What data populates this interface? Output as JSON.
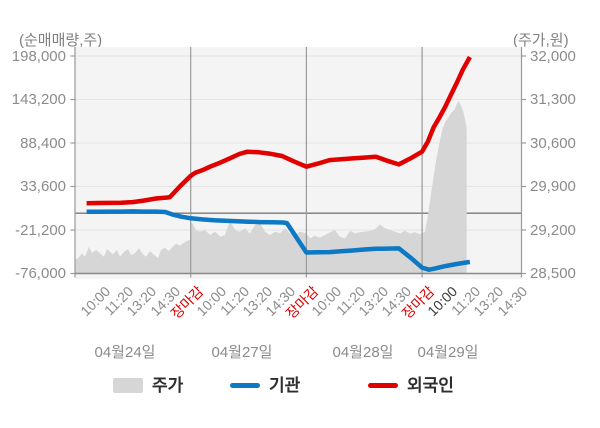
{
  "chart_data": {
    "type": "line",
    "description": "Dual-axis intraday stock chart: gray area = price (right axis), blue/red lines = institutional/foreigner net trading volume (left axis)",
    "left_axis": {
      "label": "(순매매량,주)",
      "ticks": [
        198000,
        143200,
        88400,
        33600,
        -21200,
        -76000
      ],
      "tick_labels": [
        "198,000",
        "143,200",
        "88,400",
        "33,600",
        "-21,200",
        "-76,000"
      ],
      "zero_line": true
    },
    "right_axis": {
      "label": "(주가,원)",
      "ticks": [
        32000,
        31300,
        30600,
        29900,
        29200,
        28500
      ],
      "tick_labels": [
        "32,000",
        "31,300",
        "30,600",
        "29,900",
        "29,200",
        "28,500"
      ]
    },
    "x_axis": {
      "tick_color": "#8b8b8b",
      "close_color": "#e00000",
      "em_color": "#3a3a3a",
      "days": [
        {
          "date": "04월24일",
          "ticks": [
            {
              "t": "10:00"
            },
            {
              "t": "11:20"
            },
            {
              "t": "13:20"
            },
            {
              "t": "14:30"
            },
            {
              "t": "장마감",
              "close": true
            }
          ]
        },
        {
          "date": "04월27일",
          "ticks": [
            {
              "t": "10:00"
            },
            {
              "t": "11:20"
            },
            {
              "t": "13:20"
            },
            {
              "t": "14:30"
            },
            {
              "t": "장마감",
              "close": true
            }
          ]
        },
        {
          "date": "04월28일",
          "ticks": [
            {
              "t": "10:00"
            },
            {
              "t": "11:20"
            },
            {
              "t": "13:20"
            },
            {
              "t": "14:30"
            },
            {
              "t": "장마감",
              "close": true
            }
          ]
        },
        {
          "date": "04월29일",
          "ticks": [
            {
              "t": "10:00",
              "em": true
            },
            {
              "t": "11:20"
            },
            {
              "t": "13:20"
            },
            {
              "t": "14:30"
            }
          ]
        }
      ]
    },
    "series": [
      {
        "name": "주가",
        "kind": "area",
        "axis": "right",
        "color": "#d6d6d6",
        "points": [
          [
            -1.0,
            28720
          ],
          [
            -0.87,
            28745
          ],
          [
            -0.7,
            28825
          ],
          [
            -0.57,
            28770
          ],
          [
            -0.4,
            28930
          ],
          [
            -0.27,
            28830
          ],
          [
            -0.09,
            28880
          ],
          [
            0.08,
            28825
          ],
          [
            0.25,
            28770
          ],
          [
            0.38,
            28895
          ],
          [
            0.51,
            28850
          ],
          [
            0.64,
            28810
          ],
          [
            0.82,
            28880
          ],
          [
            0.94,
            28770
          ],
          [
            1.12,
            28850
          ],
          [
            1.29,
            28895
          ],
          [
            1.42,
            28800
          ],
          [
            1.59,
            28825
          ],
          [
            1.77,
            28905
          ],
          [
            1.9,
            28825
          ],
          [
            2.07,
            28770
          ],
          [
            2.24,
            28860
          ],
          [
            2.41,
            28800
          ],
          [
            2.59,
            28755
          ],
          [
            2.72,
            28880
          ],
          [
            2.89,
            28915
          ],
          [
            3.06,
            28860
          ],
          [
            3.19,
            28915
          ],
          [
            3.37,
            28985
          ],
          [
            3.54,
            28945
          ],
          [
            3.67,
            28985
          ],
          [
            3.84,
            29025
          ],
          [
            3.97,
            29040
          ],
          [
            4.0,
            29330
          ],
          [
            4.1,
            29290
          ],
          [
            4.23,
            29200
          ],
          [
            4.4,
            29175
          ],
          [
            4.62,
            29200
          ],
          [
            4.84,
            29120
          ],
          [
            5.05,
            29175
          ],
          [
            5.27,
            29090
          ],
          [
            5.48,
            29120
          ],
          [
            5.7,
            29345
          ],
          [
            5.92,
            29200
          ],
          [
            6.13,
            29175
          ],
          [
            6.35,
            29225
          ],
          [
            6.56,
            29145
          ],
          [
            6.78,
            29280
          ],
          [
            7.0,
            29310
          ],
          [
            7.21,
            29175
          ],
          [
            7.43,
            29120
          ],
          [
            7.65,
            29175
          ],
          [
            7.86,
            29145
          ],
          [
            8.08,
            29225
          ],
          [
            8.29,
            29145
          ],
          [
            8.51,
            29120
          ],
          [
            8.73,
            29175
          ],
          [
            8.99,
            29145
          ],
          [
            9.16,
            29065
          ],
          [
            9.37,
            29110
          ],
          [
            9.59,
            29075
          ],
          [
            9.81,
            29120
          ],
          [
            10.02,
            29165
          ],
          [
            10.24,
            29200
          ],
          [
            10.45,
            29090
          ],
          [
            10.67,
            29065
          ],
          [
            10.89,
            29185
          ],
          [
            11.1,
            29145
          ],
          [
            11.32,
            29165
          ],
          [
            11.53,
            29175
          ],
          [
            11.75,
            29185
          ],
          [
            11.97,
            29215
          ],
          [
            12.18,
            29290
          ],
          [
            12.4,
            29225
          ],
          [
            12.62,
            29200
          ],
          [
            12.83,
            29175
          ],
          [
            13.05,
            29145
          ],
          [
            13.26,
            29185
          ],
          [
            13.48,
            29145
          ],
          [
            13.7,
            29165
          ],
          [
            13.91,
            29130
          ],
          [
            14.0,
            29150
          ],
          [
            14.13,
            29170
          ],
          [
            14.26,
            29440
          ],
          [
            14.35,
            29680
          ],
          [
            14.48,
            30005
          ],
          [
            14.61,
            30325
          ],
          [
            14.74,
            30570
          ],
          [
            14.87,
            30810
          ],
          [
            15.0,
            30940
          ],
          [
            15.13,
            31000
          ],
          [
            15.26,
            31085
          ],
          [
            15.39,
            31130
          ],
          [
            15.52,
            31245
          ],
          [
            15.6,
            31275
          ],
          [
            15.69,
            31195
          ],
          [
            15.78,
            31115
          ],
          [
            15.86,
            30970
          ],
          [
            15.93,
            30840
          ]
        ]
      },
      {
        "name": "기관",
        "kind": "line",
        "axis": "left",
        "color": "#0d78c3",
        "points": [
          [
            -0.5,
            1800
          ],
          [
            0,
            1800
          ],
          [
            0.5,
            2000
          ],
          [
            1,
            2000
          ],
          [
            1.5,
            2200
          ],
          [
            2,
            2000
          ],
          [
            2.5,
            2000
          ],
          [
            2.9,
            1500
          ],
          [
            3.2,
            -1500
          ],
          [
            3.6,
            -4500
          ],
          [
            4,
            -6500
          ],
          [
            4.5,
            -7800
          ],
          [
            5,
            -8800
          ],
          [
            5.5,
            -9500
          ],
          [
            6,
            -10100
          ],
          [
            6.5,
            -10700
          ],
          [
            7,
            -11300
          ],
          [
            7.5,
            -11500
          ],
          [
            8,
            -11700
          ],
          [
            8.16,
            -12500
          ],
          [
            9,
            -49500
          ],
          [
            9.5,
            -49300
          ],
          [
            10,
            -49100
          ],
          [
            10.5,
            -48000
          ],
          [
            11,
            -47000
          ],
          [
            11.5,
            -45800
          ],
          [
            12,
            -44900
          ],
          [
            12.5,
            -44600
          ],
          [
            13,
            -44400
          ],
          [
            13.5,
            -56000
          ],
          [
            14,
            -68600
          ],
          [
            14.3,
            -71200
          ],
          [
            14.6,
            -69500
          ],
          [
            15,
            -66700
          ],
          [
            15.5,
            -64000
          ],
          [
            16.07,
            -61400
          ]
        ]
      },
      {
        "name": "외국인",
        "kind": "line",
        "axis": "left",
        "color": "#e00000",
        "points": [
          [
            -0.5,
            12400
          ],
          [
            0,
            12800
          ],
          [
            0.5,
            12900
          ],
          [
            1,
            13200
          ],
          [
            1.5,
            14000
          ],
          [
            2,
            16000
          ],
          [
            2.5,
            18500
          ],
          [
            3,
            19800
          ],
          [
            3.1,
            20200
          ],
          [
            3.53,
            33600
          ],
          [
            4,
            46900
          ],
          [
            4.2,
            51000
          ],
          [
            4.5,
            54000
          ],
          [
            4.84,
            58600
          ],
          [
            5.27,
            63600
          ],
          [
            5.7,
            69100
          ],
          [
            6.1,
            74600
          ],
          [
            6.45,
            77500
          ],
          [
            6.95,
            76700
          ],
          [
            7.4,
            75000
          ],
          [
            7.95,
            72000
          ],
          [
            8.4,
            66000
          ],
          [
            9,
            58500
          ],
          [
            9.5,
            62500
          ],
          [
            10,
            66900
          ],
          [
            10.5,
            68000
          ],
          [
            11,
            69000
          ],
          [
            11.5,
            70000
          ],
          [
            12,
            71100
          ],
          [
            12.5,
            66000
          ],
          [
            13,
            61500
          ],
          [
            13.5,
            69000
          ],
          [
            14,
            77400
          ],
          [
            14.25,
            90000
          ],
          [
            14.5,
            108000
          ],
          [
            14.75,
            120500
          ],
          [
            15,
            134000
          ],
          [
            15.25,
            149000
          ],
          [
            15.52,
            165300
          ],
          [
            15.75,
            180000
          ],
          [
            16.07,
            196800
          ]
        ]
      }
    ],
    "legend": {
      "position": "bottom",
      "entries": [
        "주가",
        "기관",
        "외국인"
      ]
    },
    "grid": {
      "horizontal": true,
      "vertical_day_separators": 3
    },
    "colors": {
      "plot_bg": "#f4f4f4",
      "gridline": "#e4e4e4",
      "axis": "#9a9a9a",
      "zero_line": "#7a7a7a",
      "bottom_axis": "#8a8a8a"
    }
  }
}
